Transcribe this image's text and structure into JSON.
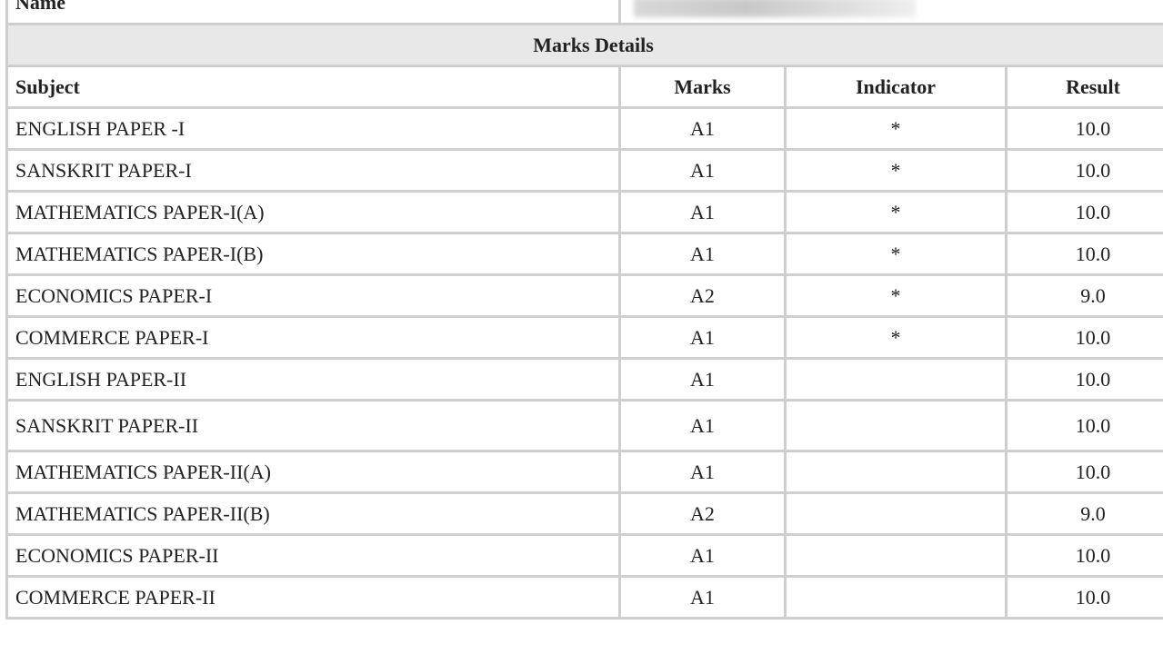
{
  "name_label": "Name",
  "section_title": "Marks Details",
  "columns": [
    "Subject",
    "Marks",
    "Indicator",
    "Result"
  ],
  "rows": [
    {
      "subject": "ENGLISH PAPER -I",
      "marks": "A1",
      "indicator": "*",
      "result": "10.0"
    },
    {
      "subject": "SANSKRIT PAPER-I",
      "marks": "A1",
      "indicator": "*",
      "result": "10.0"
    },
    {
      "subject": "MATHEMATICS PAPER-I(A)",
      "marks": "A1",
      "indicator": "*",
      "result": "10.0"
    },
    {
      "subject": "MATHEMATICS PAPER-I(B)",
      "marks": "A1",
      "indicator": "*",
      "result": "10.0"
    },
    {
      "subject": "ECONOMICS PAPER-I",
      "marks": "A2",
      "indicator": "*",
      "result": "9.0"
    },
    {
      "subject": "COMMERCE PAPER-I",
      "marks": "A1",
      "indicator": "*",
      "result": "10.0"
    },
    {
      "subject": "ENGLISH PAPER-II",
      "marks": "A1",
      "indicator": "",
      "result": "10.0"
    },
    {
      "subject": "SANSKRIT PAPER-II",
      "marks": "A1",
      "indicator": "",
      "result": "10.0"
    },
    {
      "subject": "MATHEMATICS PAPER-II(A)",
      "marks": "A1",
      "indicator": "",
      "result": "10.0"
    },
    {
      "subject": "MATHEMATICS PAPER-II(B)",
      "marks": "A2",
      "indicator": "",
      "result": "9.0"
    },
    {
      "subject": "ECONOMICS PAPER-II",
      "marks": "A1",
      "indicator": "",
      "result": "10.0"
    },
    {
      "subject": "COMMERCE PAPER-II",
      "marks": "A1",
      "indicator": "",
      "result": "10.0"
    }
  ]
}
